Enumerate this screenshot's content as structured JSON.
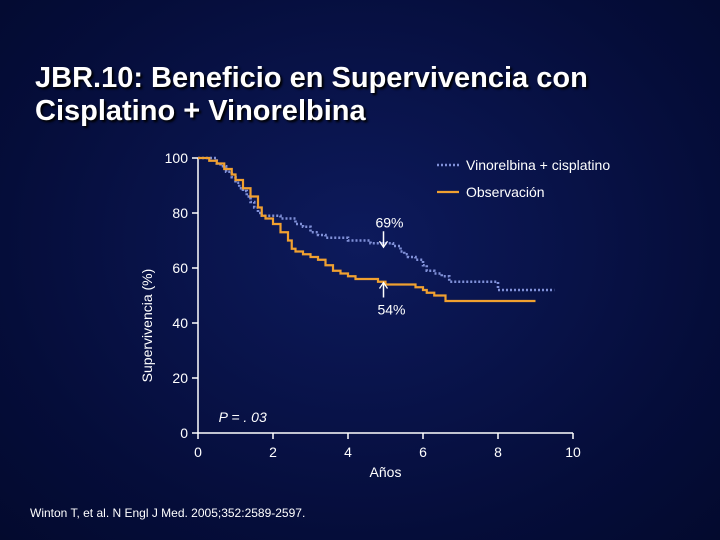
{
  "slide": {
    "title_line1": "JBR.10: Beneficio en Supervivencia con",
    "title_line2": "Cisplatino + Vinorelbina",
    "citation": "Winton T, et al. N Engl J Med. 2005;352:2589-2597."
  },
  "colors": {
    "vinorelbina": "#8090d8",
    "observacion": "#f0a030",
    "axis": "#ffffff"
  },
  "chart_data": {
    "type": "line",
    "title": "",
    "xlabel": "Años",
    "ylabel": "Supervivencia (%)",
    "xlim": [
      0,
      10
    ],
    "ylim": [
      0,
      100
    ],
    "x_ticks": [
      "0",
      "2",
      "4",
      "6",
      "8",
      "10"
    ],
    "y_ticks": [
      "0",
      "20",
      "40",
      "60",
      "80",
      "100"
    ],
    "legend_position": "top-right",
    "grid": false,
    "series": [
      {
        "name": "Vinorelbina + cisplatino",
        "style": "dotted",
        "color": "#8090d8",
        "x": [
          0,
          0.2,
          0.35,
          0.5,
          0.6,
          0.75,
          0.9,
          1.0,
          1.1,
          1.2,
          1.3,
          1.4,
          1.5,
          1.6,
          1.7,
          1.8,
          2.0,
          2.2,
          2.4,
          2.6,
          2.8,
          3.0,
          3.2,
          3.4,
          3.6,
          3.8,
          4.0,
          4.2,
          4.4,
          4.6,
          4.8,
          5.0,
          5.2,
          5.4,
          5.5,
          5.6,
          5.8,
          6.0,
          6.1,
          6.3,
          6.5,
          6.7,
          7.0,
          7.3,
          7.6,
          7.8,
          8.0,
          8.5,
          9.0,
          9.5
        ],
        "y": [
          100,
          100,
          100,
          98,
          97,
          95,
          93,
          91,
          89,
          88,
          86,
          84,
          82,
          80,
          79,
          79,
          79,
          78,
          78,
          76,
          75,
          73,
          72,
          71,
          71,
          71,
          70,
          70,
          70,
          69,
          69,
          69,
          68,
          66,
          65,
          64,
          63,
          61,
          59,
          58,
          57,
          55,
          55,
          55,
          55,
          55,
          52,
          52,
          52,
          52
        ]
      },
      {
        "name": "Observación",
        "style": "solid",
        "color": "#f0a030",
        "x": [
          0,
          0.3,
          0.5,
          0.7,
          0.9,
          1.0,
          1.2,
          1.4,
          1.6,
          1.7,
          1.8,
          2.0,
          2.2,
          2.4,
          2.5,
          2.6,
          2.8,
          3.0,
          3.2,
          3.4,
          3.6,
          3.8,
          4.0,
          4.2,
          4.4,
          4.6,
          4.8,
          5.0,
          5.2,
          5.4,
          5.6,
          5.8,
          6.0,
          6.1,
          6.3,
          6.6,
          7.0,
          8.0,
          9.0
        ],
        "y": [
          100,
          99,
          98,
          96,
          94,
          92,
          89,
          86,
          82,
          79,
          78,
          76,
          73,
          70,
          67,
          66,
          65,
          64,
          63,
          61,
          59,
          58,
          57,
          56,
          56,
          56,
          55,
          54,
          54,
          54,
          54,
          53,
          52,
          51,
          50,
          48,
          48,
          48,
          48
        ]
      }
    ],
    "annotations": [
      {
        "text": "69%",
        "x": 5.0,
        "y": 69
      },
      {
        "text": "54%",
        "x": 5.0,
        "y": 54
      }
    ],
    "p_value": "P = . 03"
  }
}
